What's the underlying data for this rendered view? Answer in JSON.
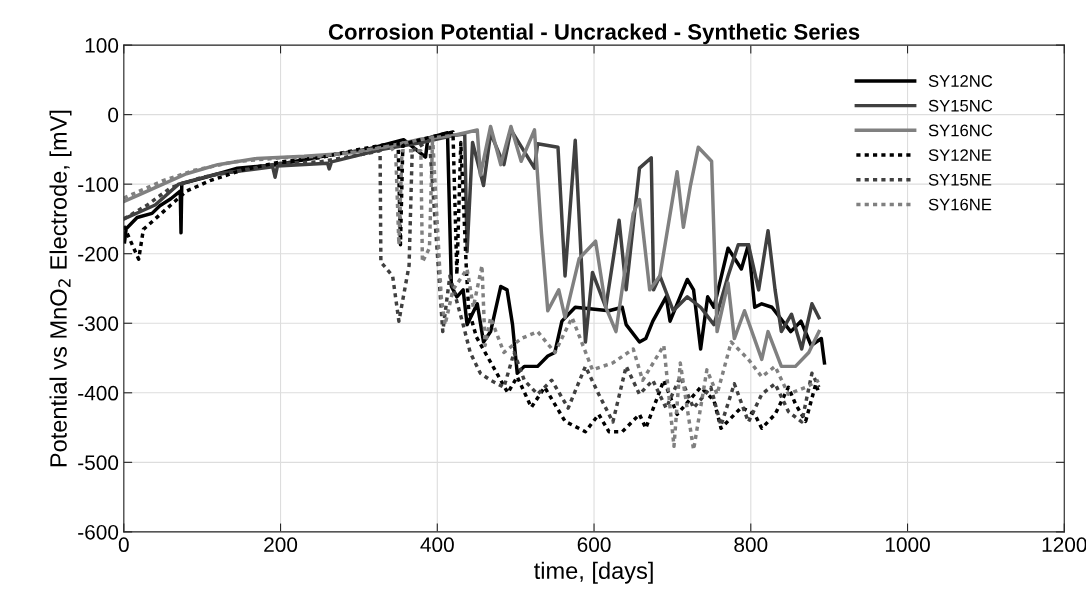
{
  "chart_data": {
    "type": "line",
    "title": "Corrosion Potential - Uncracked - Synthetic Series",
    "xlabel": "time, [days]",
    "ylabel": "Potential vs MnO$_{2}$ Electrode, [mV]",
    "xlim": [
      0,
      1200
    ],
    "xticks": [
      0,
      200,
      400,
      600,
      800,
      1000,
      1200
    ],
    "ylim": [
      -600,
      100
    ],
    "yticks": [
      -600,
      -500,
      -400,
      -300,
      -200,
      -100,
      0,
      100
    ],
    "grid": true,
    "legend": "top right",
    "marker": "none",
    "series": [
      {
        "name": "SY12NC",
        "color": "#000000",
        "line_style": "solid",
        "x": [
          1,
          3,
          17,
          36,
          46,
          60,
          72,
          73,
          74,
          102,
          145,
          196,
          248,
          310,
          357,
          385,
          388,
          413,
          418,
          425,
          433,
          438,
          451,
          459,
          468,
          481,
          489,
          496,
          502,
          511,
          528,
          541,
          550,
          559,
          576,
          619,
          636,
          641,
          658,
          666,
          675,
          692,
          697,
          719,
          727,
          736,
          745,
          753,
          771,
          788,
          797,
          805,
          814,
          827,
          851,
          864,
          877,
          890,
          894
        ],
        "values": [
          -183,
          -164,
          -148,
          -142,
          -131,
          -121,
          -110,
          -170,
          -99,
          -91,
          -77,
          -72,
          -61,
          -50,
          -36,
          -61,
          -34,
          -26,
          -247,
          -262,
          -252,
          -302,
          -272,
          -327,
          -312,
          -247,
          -252,
          -302,
          -372,
          -362,
          -362,
          -347,
          -342,
          -297,
          -277,
          -282,
          -277,
          -302,
          -327,
          -322,
          -297,
          -262,
          -297,
          -237,
          -252,
          -337,
          -262,
          -277,
          -192,
          -222,
          -187,
          -277,
          -272,
          -277,
          -312,
          -297,
          -332,
          -322,
          -357
        ]
      },
      {
        "name": "SY15NC",
        "color": "#404040",
        "line_style": "solid",
        "x": [
          0,
          20,
          40,
          70,
          120,
          190,
          193,
          196,
          260,
          262,
          265,
          330,
          380,
          420,
          435,
          438,
          445,
          459,
          468,
          485,
          494,
          524,
          528,
          554,
          563,
          576,
          589,
          598,
          615,
          632,
          641,
          658,
          673,
          676,
          684,
          701,
          719,
          736,
          753,
          771,
          784,
          797,
          810,
          822,
          831,
          839,
          852,
          865,
          878,
          887
        ],
        "values": [
          -150,
          -140,
          -130,
          -100,
          -85,
          -75,
          -90,
          -74,
          -70,
          -78,
          -68,
          -50,
          -40,
          -30,
          -28,
          -197,
          -40,
          -102,
          -27,
          -72,
          -22,
          -77,
          -42,
          -47,
          -232,
          -37,
          -327,
          -227,
          -277,
          -152,
          -252,
          -77,
          -62,
          -252,
          -232,
          -282,
          -262,
          -277,
          -302,
          -232,
          -187,
          -187,
          -252,
          -167,
          -252,
          -312,
          -287,
          -337,
          -272,
          -292
        ]
      },
      {
        "name": "SY16NC",
        "color": "#808080",
        "line_style": "solid",
        "x": [
          0,
          20,
          50,
          80,
          120,
          170,
          230,
          290,
          340,
          380,
          420,
          440,
          451,
          455,
          468,
          481,
          494,
          507,
          524,
          533,
          541,
          555,
          563,
          581,
          602,
          615,
          628,
          650,
          658,
          671,
          684,
          706,
          714,
          723,
          733,
          750,
          757,
          771,
          779,
          792,
          814,
          822,
          839,
          857,
          874,
          887
        ],
        "values": [
          -125,
          -115,
          -100,
          -85,
          -72,
          -63,
          -60,
          -55,
          -45,
          -35,
          -30,
          -25,
          -22,
          -87,
          -17,
          -72,
          -17,
          -67,
          -22,
          -172,
          -282,
          -252,
          -292,
          -207,
          -182,
          -277,
          -312,
          -142,
          -122,
          -252,
          -232,
          -82,
          -162,
          -102,
          -47,
          -67,
          -312,
          -242,
          -322,
          -282,
          -352,
          -312,
          -362,
          -362,
          -342,
          -312
        ]
      },
      {
        "name": "SY12NE",
        "color": "#000000",
        "line_style": "dotted",
        "x": [
          0,
          19,
          25,
          40,
          60,
          80,
          110,
          150,
          200,
          250,
          300,
          340,
          350,
          353,
          356,
          365,
          400,
          420,
          425,
          430,
          437,
          440,
          450,
          470,
          490,
          502,
          520,
          537,
          563,
          589,
          606,
          619,
          636,
          658,
          666,
          689,
          706,
          736,
          753,
          762,
          788,
          805,
          814,
          831,
          848,
          857,
          870,
          883,
          887
        ],
        "values": [
          -160,
          -208,
          -165,
          -150,
          -130,
          -110,
          -95,
          -80,
          -68,
          -62,
          -50,
          -42,
          -40,
          -187,
          -45,
          -40,
          -30,
          -25,
          -230,
          -40,
          -220,
          -280,
          -320,
          -360,
          -400,
          -377,
          -421,
          -392,
          -441,
          -456,
          -431,
          -456,
          -456,
          -431,
          -451,
          -382,
          -431,
          -392,
          -411,
          -451,
          -421,
          -431,
          -451,
          -431,
          -392,
          -416,
          -441,
          -387,
          -401
        ]
      },
      {
        "name": "SY15NE",
        "color": "#404040",
        "line_style": "dotted",
        "x": [
          0,
          30,
          60,
          100,
          150,
          200,
          250,
          300,
          327,
          328,
          343,
          351,
          364,
          368,
          390,
          407,
          416,
          433,
          442,
          455,
          468,
          485,
          498,
          511,
          528,
          546,
          567,
          589,
          606,
          624,
          641,
          658,
          675,
          692,
          710,
          727,
          749,
          762,
          779,
          797,
          814,
          831,
          848,
          865,
          878,
          887
        ],
        "values": [
          -150,
          -130,
          -105,
          -90,
          -80,
          -70,
          -68,
          -58,
          -52,
          -212,
          -232,
          -297,
          -217,
          -52,
          -37,
          -312,
          -232,
          -302,
          -342,
          -372,
          -382,
          -392,
          -342,
          -382,
          -402,
          -382,
          -422,
          -362,
          -402,
          -442,
          -362,
          -402,
          -382,
          -422,
          -377,
          -422,
          -392,
          -447,
          -387,
          -442,
          -402,
          -387,
          -427,
          -442,
          -372,
          -392
        ]
      },
      {
        "name": "SY16NE",
        "color": "#808080",
        "line_style": "dotted",
        "x": [
          0,
          20,
          50,
          90,
          140,
          200,
          250,
          300,
          340,
          347,
          351,
          355,
          379,
          381,
          390,
          394,
          405,
          410,
          420,
          438,
          446,
          457,
          461,
          468,
          485,
          507,
          528,
          550,
          572,
          598,
          624,
          650,
          662,
          689,
          702,
          710,
          727,
          744,
          757,
          775,
          797,
          814,
          831,
          848,
          870,
          887
        ],
        "values": [
          -120,
          -110,
          -95,
          -80,
          -68,
          -62,
          -60,
          -53,
          -45,
          -57,
          -187,
          -52,
          -52,
          -212,
          -192,
          -32,
          -262,
          -302,
          -252,
          -222,
          -277,
          -217,
          -332,
          -292,
          -342,
          -322,
          -312,
          -342,
          -292,
          -367,
          -357,
          -337,
          -382,
          -332,
          -477,
          -357,
          -482,
          -367,
          -402,
          -327,
          -352,
          -377,
          -362,
          -402,
          -392,
          -382
        ]
      }
    ]
  }
}
